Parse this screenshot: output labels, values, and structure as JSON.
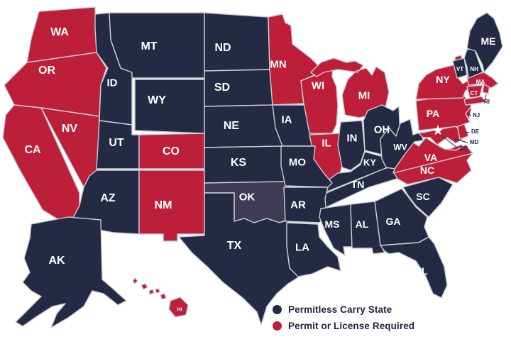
{
  "legend": {
    "items": [
      {
        "id": "permitless",
        "label": "Permitless Carry State",
        "color": "#242a44"
      },
      {
        "id": "permit",
        "label": "Permit or License Required",
        "color": "#bd1f39"
      }
    ]
  },
  "colors": {
    "permitless": "#242a44",
    "permit": "#bd1f39",
    "oklahoma_fill": "#3f3b58",
    "dc_marker": "#ffffff",
    "state_border": "#c9cdd6",
    "state_label": "#ffffff",
    "outside_label": "#232946",
    "background": "#ffffff"
  },
  "states": [
    {
      "code": "WA",
      "label": "WA",
      "status": "permit"
    },
    {
      "code": "OR",
      "label": "OR",
      "status": "permit"
    },
    {
      "code": "CA",
      "label": "CA",
      "status": "permit"
    },
    {
      "code": "NV",
      "label": "NV",
      "status": "permit"
    },
    {
      "code": "ID",
      "label": "ID",
      "status": "permitless"
    },
    {
      "code": "MT",
      "label": "MT",
      "status": "permitless"
    },
    {
      "code": "WY",
      "label": "WY",
      "status": "permitless"
    },
    {
      "code": "UT",
      "label": "UT",
      "status": "permitless"
    },
    {
      "code": "CO",
      "label": "CO",
      "status": "permit"
    },
    {
      "code": "AZ",
      "label": "AZ",
      "status": "permitless"
    },
    {
      "code": "NM",
      "label": "NM",
      "status": "permit"
    },
    {
      "code": "ND",
      "label": "ND",
      "status": "permitless"
    },
    {
      "code": "SD",
      "label": "SD",
      "status": "permitless"
    },
    {
      "code": "NE",
      "label": "NE",
      "status": "permitless"
    },
    {
      "code": "KS",
      "label": "KS",
      "status": "permitless"
    },
    {
      "code": "OK",
      "label": "OK",
      "status": "permitless"
    },
    {
      "code": "TX",
      "label": "TX",
      "status": "permitless"
    },
    {
      "code": "MN",
      "label": "MN",
      "status": "permit"
    },
    {
      "code": "IA",
      "label": "IA",
      "status": "permitless"
    },
    {
      "code": "WI",
      "label": "WI",
      "status": "permit"
    },
    {
      "code": "IL",
      "label": "IL",
      "status": "permit"
    },
    {
      "code": "MI",
      "label": "MI",
      "status": "permit"
    },
    {
      "code": "IN",
      "label": "IN",
      "status": "permitless"
    },
    {
      "code": "OH",
      "label": "OH",
      "status": "permitless"
    },
    {
      "code": "KY",
      "label": "KY",
      "status": "permitless"
    },
    {
      "code": "TN",
      "label": "TN",
      "status": "permitless"
    },
    {
      "code": "MO",
      "label": "MO",
      "status": "permitless"
    },
    {
      "code": "AR",
      "label": "AR",
      "status": "permitless"
    },
    {
      "code": "LA",
      "label": "LA",
      "status": "permitless"
    },
    {
      "code": "MS",
      "label": "MS",
      "status": "permitless"
    },
    {
      "code": "AL",
      "label": "AL",
      "status": "permitless"
    },
    {
      "code": "GA",
      "label": "GA",
      "status": "permitless"
    },
    {
      "code": "FL",
      "label": "FL",
      "status": "permitless"
    },
    {
      "code": "SC",
      "label": "SC",
      "status": "permitless"
    },
    {
      "code": "NC",
      "label": "NC",
      "status": "permit"
    },
    {
      "code": "VA",
      "label": "VA",
      "status": "permit"
    },
    {
      "code": "WV",
      "label": "WV",
      "status": "permitless"
    },
    {
      "code": "MD",
      "label": "MD",
      "status": "permit"
    },
    {
      "code": "DE",
      "label": "DE",
      "status": "permit"
    },
    {
      "code": "NJ",
      "label": "NJ",
      "status": "permit"
    },
    {
      "code": "PA",
      "label": "PA",
      "status": "permit"
    },
    {
      "code": "NY",
      "label": "NY",
      "status": "permit"
    },
    {
      "code": "CT",
      "label": "CT",
      "status": "permit"
    },
    {
      "code": "RI",
      "label": "RI",
      "status": "permit"
    },
    {
      "code": "MA",
      "label": "MA",
      "status": "permit"
    },
    {
      "code": "VT",
      "label": "VT",
      "status": "permitless"
    },
    {
      "code": "NH",
      "label": "NH",
      "status": "permitless"
    },
    {
      "code": "ME",
      "label": "ME",
      "status": "permitless"
    },
    {
      "code": "AK",
      "label": "AK",
      "status": "permitless"
    },
    {
      "code": "HI",
      "label": "HI",
      "status": "permit"
    },
    {
      "code": "DC",
      "label": "DC",
      "status": "permit"
    }
  ]
}
